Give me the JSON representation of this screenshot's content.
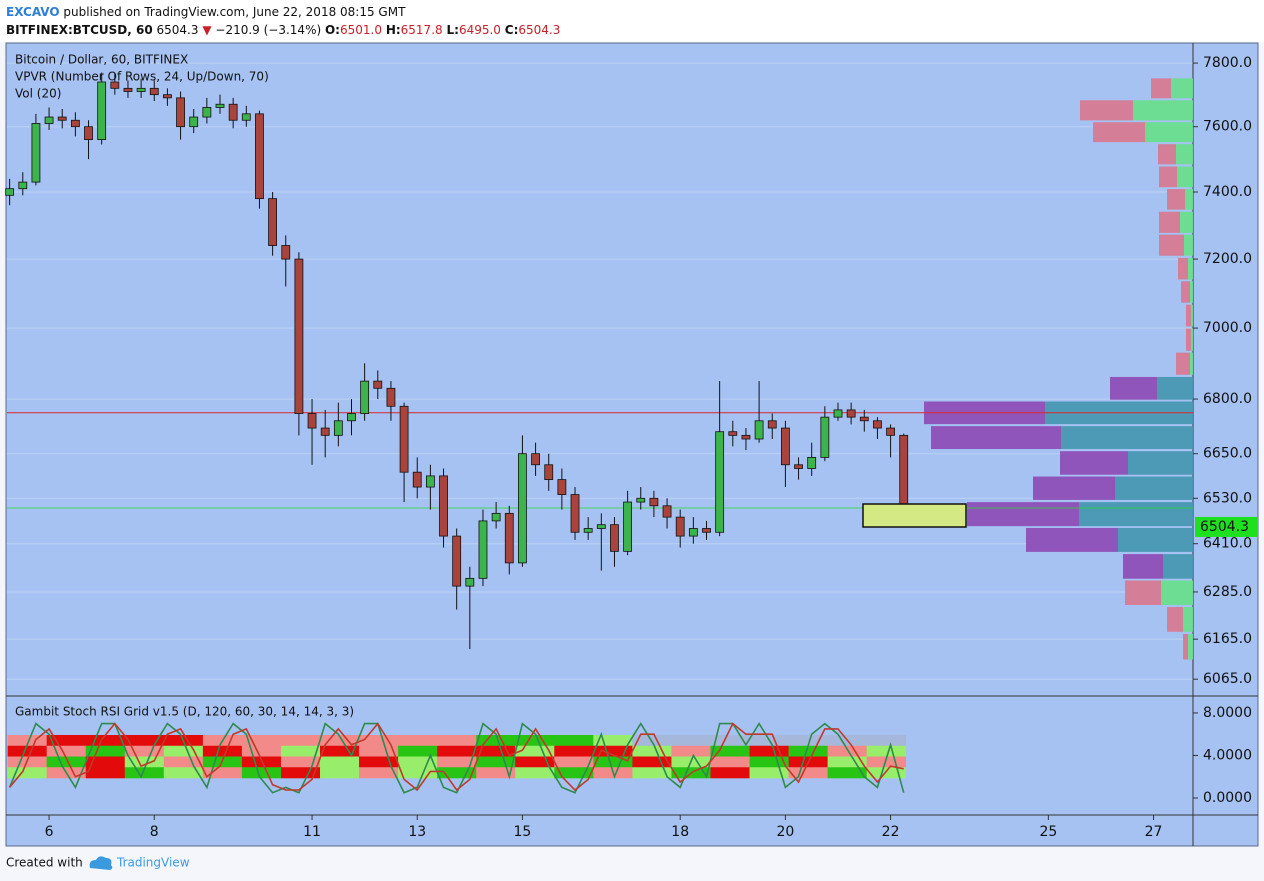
{
  "header": {
    "author": "EXCAVO",
    "published": "published on TradingView.com, June 22, 2018 08:15 GMT",
    "symbol": "BITFINEX:BTCUSD, 60",
    "price": "6504.3",
    "arrow": "▼",
    "change": "−210.9 (−3.14%)",
    "open_label": "O:",
    "open": "6501.0",
    "high_label": "H:",
    "high": "6517.8",
    "low_label": "L:",
    "low": "6495.0",
    "close_label": "C:",
    "close": "6504.3"
  },
  "chart_data": [
    {
      "type": "candlestick",
      "title": "Bitcoin / Dollar, 60, BITFINEX",
      "indicators": [
        "VPVR (Number Of Rows, 24, Up/Down, 70)",
        "Vol (20)"
      ],
      "x": [
        5.25,
        5.5,
        5.75,
        6.0,
        6.25,
        6.5,
        6.75,
        7.0,
        7.25,
        7.5,
        7.75,
        8.0,
        8.25,
        8.5,
        8.75,
        9.0,
        9.25,
        9.5,
        9.75,
        10.0,
        10.25,
        10.5,
        10.75,
        11.0,
        11.25,
        11.5,
        11.75,
        12.0,
        12.25,
        12.5,
        12.75,
        13.0,
        13.25,
        13.5,
        13.75,
        14.0,
        14.25,
        14.5,
        14.75,
        15.0,
        15.25,
        15.5,
        15.75,
        16.0,
        16.25,
        16.5,
        16.75,
        17.0,
        17.25,
        17.5,
        17.75,
        18.0,
        18.25,
        18.5,
        18.75,
        19.0,
        19.25,
        19.5,
        19.75,
        20.0,
        20.25,
        20.5,
        20.75,
        21.0,
        21.25,
        21.5,
        21.75,
        22.0,
        22.25
      ],
      "open": [
        7390,
        7410,
        7430,
        7610,
        7630,
        7620,
        7600,
        7560,
        7740,
        7720,
        7710,
        7720,
        7700,
        7690,
        7600,
        7630,
        7660,
        7670,
        7620,
        7640,
        7380,
        7240,
        7200,
        6760,
        6720,
        6700,
        6740,
        6760,
        6850,
        6830,
        6780,
        6600,
        6560,
        6590,
        6430,
        6300,
        6320,
        6470,
        6490,
        6360,
        6650,
        6620,
        6580,
        6540,
        6440,
        6450,
        6460,
        6390,
        6520,
        6530,
        6510,
        6480,
        6430,
        6450,
        6440,
        6710,
        6700,
        6690,
        6740,
        6720,
        6620,
        6610,
        6640,
        6750,
        6770,
        6750,
        6740,
        6720,
        6700
      ],
      "high": [
        7440,
        7460,
        7640,
        7660,
        7655,
        7645,
        7620,
        7770,
        7765,
        7745,
        7750,
        7745,
        7720,
        7710,
        7655,
        7690,
        7700,
        7690,
        7665,
        7650,
        7400,
        7270,
        7220,
        6800,
        6770,
        6790,
        6800,
        6900,
        6880,
        6850,
        6790,
        6640,
        6620,
        6610,
        6450,
        6350,
        6500,
        6520,
        6510,
        6700,
        6680,
        6650,
        6610,
        6560,
        6480,
        6490,
        6480,
        6550,
        6560,
        6550,
        6530,
        6500,
        6480,
        6470,
        6850,
        6740,
        6720,
        6850,
        6760,
        6740,
        6640,
        6680,
        6780,
        6790,
        6790,
        6770,
        6750,
        6730,
        6705
      ],
      "low": [
        7360,
        7390,
        7420,
        7590,
        7595,
        7570,
        7500,
        7545,
        7700,
        7690,
        7690,
        7680,
        7665,
        7560,
        7580,
        7610,
        7640,
        7595,
        7600,
        7350,
        7210,
        7120,
        6700,
        6620,
        6640,
        6670,
        6700,
        6740,
        6800,
        6740,
        6520,
        6530,
        6500,
        6400,
        6240,
        6140,
        6300,
        6450,
        6330,
        6350,
        6590,
        6550,
        6500,
        6420,
        6420,
        6340,
        6350,
        6380,
        6500,
        6480,
        6450,
        6400,
        6410,
        6420,
        6430,
        6670,
        6660,
        6680,
        6690,
        6560,
        6580,
        6590,
        6630,
        6740,
        6730,
        6710,
        6690,
        6640,
        6495
      ],
      "close": [
        7410,
        7430,
        7610,
        7630,
        7620,
        7600,
        7560,
        7740,
        7720,
        7710,
        7720,
        7700,
        7690,
        7600,
        7630,
        7660,
        7670,
        7620,
        7640,
        7380,
        7240,
        7200,
        6760,
        6720,
        6700,
        6740,
        6760,
        6850,
        6830,
        6780,
        6600,
        6560,
        6590,
        6430,
        6300,
        6320,
        6470,
        6490,
        6360,
        6650,
        6620,
        6580,
        6540,
        6440,
        6450,
        6460,
        6390,
        6520,
        6530,
        6510,
        6480,
        6430,
        6450,
        6440,
        6710,
        6700,
        6690,
        6740,
        6720,
        6620,
        6610,
        6640,
        6750,
        6770,
        6750,
        6740,
        6720,
        6700,
        6504
      ],
      "up_color": "#3cb44b",
      "down_color": "#a9443c",
      "log_scale": true,
      "ylim": [
        6026,
        7861
      ],
      "yticks": [
        {
          "value": 6065,
          "label": "6065.0"
        },
        {
          "value": 6165,
          "label": "6165.0"
        },
        {
          "value": 6285,
          "label": "6285.0"
        },
        {
          "value": 6410,
          "label": "6410.0"
        },
        {
          "value": 6530,
          "label": "6530.0"
        },
        {
          "value": 6650,
          "label": "6650.0"
        },
        {
          "value": 6800,
          "label": "6800.0"
        },
        {
          "value": 7000,
          "label": "7000.0"
        },
        {
          "value": 7200,
          "label": "7200.0"
        },
        {
          "value": 7400,
          "label": "7400.0"
        },
        {
          "value": 7600,
          "label": "7600.0"
        },
        {
          "value": 7800,
          "label": "7800.0"
        }
      ],
      "xlim": [
        5.2,
        27.75
      ],
      "xticks": [
        6,
        8,
        11,
        13,
        15,
        18,
        20,
        22,
        25,
        27
      ],
      "poc": 6762,
      "poc_color": "#d9262e",
      "last_price": 6504.3,
      "last_price_color": "#1fe01f",
      "vpvr": {
        "rows": [
          6146,
          6215,
          6283,
          6351,
          6420,
          6488,
          6557,
          6625,
          6694,
          6762,
          6830,
          6899,
          6967,
          7036,
          7104,
          7172,
          7241,
          7309,
          7378,
          7446,
          7515,
          7583,
          7651,
          7720
        ],
        "up": [
          5,
          10,
          32,
          30,
          75,
          114,
          78,
          65,
          132,
          148,
          36,
          3,
          2,
          2,
          3,
          5,
          9,
          13,
          8,
          16,
          17,
          48,
          60,
          22
        ],
        "down": [
          5,
          16,
          36,
          40,
          92,
          112,
          82,
          68,
          130,
          121,
          47,
          14,
          5,
          5,
          9,
          10,
          25,
          21,
          18,
          18,
          18,
          52,
          53,
          20
        ],
        "value_area": [
          false,
          false,
          false,
          true,
          true,
          true,
          true,
          true,
          true,
          true,
          true,
          false,
          false,
          false,
          false,
          false,
          false,
          false,
          false,
          false,
          false,
          false,
          false,
          false
        ],
        "up_color": "#68de8c",
        "down_color": "#d77a92",
        "va_up_color": "#4898b2",
        "va_down_color": "#8e4fb6"
      }
    },
    {
      "type": "line",
      "title": "Gambit Stoch RSI Grid v1.5 (D, 120, 60, 30, 14, 14, 3, 3)",
      "x": [
        5.25,
        5.5,
        5.75,
        6.0,
        6.25,
        6.5,
        6.75,
        7.0,
        7.25,
        7.5,
        7.75,
        8.0,
        8.25,
        8.5,
        8.75,
        9.0,
        9.25,
        9.5,
        9.75,
        10.0,
        10.25,
        10.5,
        10.75,
        11.0,
        11.25,
        11.5,
        11.75,
        12.0,
        12.25,
        12.5,
        12.75,
        13.0,
        13.25,
        13.5,
        13.75,
        14.0,
        14.25,
        14.5,
        14.75,
        15.0,
        15.25,
        15.5,
        15.75,
        16.0,
        16.25,
        16.5,
        16.75,
        17.0,
        17.25,
        17.5,
        17.75,
        18.0,
        18.25,
        18.5,
        18.75,
        19.0,
        19.25,
        19.5,
        19.75,
        20.0,
        20.25,
        20.5,
        20.75,
        21.0,
        21.25,
        21.5,
        21.75,
        22.0,
        22.25
      ],
      "series": [
        {
          "color": "#2f8a4e",
          "values": [
            1,
            4,
            7,
            6,
            3,
            1,
            4,
            7,
            7,
            4,
            2,
            5,
            7,
            6,
            3,
            1,
            5,
            7,
            6,
            2,
            0.5,
            1,
            0.5,
            3,
            7,
            6,
            4,
            7,
            7,
            3,
            0.5,
            1,
            4,
            1,
            0.5,
            3,
            7,
            6,
            2,
            7,
            6,
            3,
            1,
            0.5,
            3,
            6,
            2,
            5,
            7,
            5,
            2,
            1,
            4,
            2,
            7,
            7,
            5,
            7,
            5,
            1,
            2,
            6,
            7,
            6,
            4,
            2,
            1,
            5,
            0.5
          ]
        },
        {
          "color": "#c0392b",
          "values": [
            1,
            2.5,
            5.5,
            6.5,
            4.5,
            2,
            2.5,
            5.5,
            7,
            5.5,
            3,
            3.5,
            6,
            6.5,
            4.5,
            2,
            3,
            6,
            6.5,
            4,
            1.25,
            0.75,
            0.75,
            1.75,
            5,
            6.5,
            5,
            5.5,
            7,
            5,
            1.75,
            0.75,
            2.5,
            2.5,
            0.75,
            1.75,
            5,
            6.5,
            4,
            4.5,
            6.5,
            4.5,
            2,
            0.75,
            1.75,
            4.5,
            4,
            3.5,
            6,
            6,
            3.5,
            1.5,
            2.5,
            3,
            4.5,
            7,
            6,
            6,
            6,
            3,
            1.5,
            4,
            6.5,
            6.5,
            5,
            3,
            1.5,
            3,
            2.75
          ]
        }
      ],
      "grid": [
        [
          -1,
          -2,
          -2,
          -2,
          -2,
          -1,
          -1,
          -1,
          -1,
          -1,
          -1,
          -1,
          2,
          2,
          2,
          1,
          0,
          0,
          0,
          0,
          0,
          0,
          0
        ],
        [
          -2,
          -1,
          2,
          -1,
          1,
          -2,
          -1,
          1,
          -2,
          -1,
          2,
          -2,
          -2,
          1,
          -2,
          -2,
          1,
          -1,
          2,
          -2,
          2,
          -1,
          1
        ],
        [
          -1,
          2,
          -2,
          1,
          -1,
          2,
          -2,
          -1,
          1,
          -2,
          1,
          -1,
          2,
          -2,
          -1,
          2,
          -2,
          1,
          -1,
          2,
          -2,
          1,
          -1
        ],
        [
          1,
          -1,
          -2,
          2,
          1,
          -1,
          2,
          -2,
          1,
          -1,
          1,
          2,
          -1,
          1,
          2,
          -1,
          1,
          2,
          -2,
          1,
          -1,
          2,
          1
        ]
      ],
      "grid_colors": {
        "-2": "#e20a0a",
        "-1": "#f28a8a",
        "0": "#a6b7dc",
        "1": "#98ee6a",
        "2": "#28c414"
      },
      "ylim": [
        -1.6,
        9.5
      ],
      "yticks": [
        {
          "value": 0,
          "label": "0.0000"
        },
        {
          "value": 4,
          "label": "4.0000"
        },
        {
          "value": 8,
          "label": "8.0000"
        }
      ]
    }
  ],
  "footer": {
    "created": "Created with",
    "brand": "TradingView"
  }
}
